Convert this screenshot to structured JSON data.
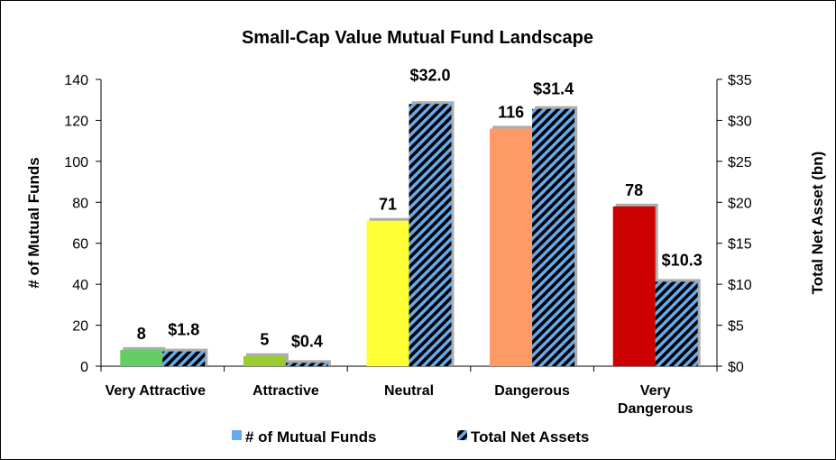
{
  "chart_data": {
    "type": "bar",
    "title": "Small-Cap Value Mutual Fund Landscape",
    "categories": [
      [
        "Very Attractive"
      ],
      [
        "Attractive"
      ],
      [
        "Neutral"
      ],
      [
        "Dangerous"
      ],
      [
        "Very",
        "Dangerous"
      ]
    ],
    "category_colors": [
      "#66cc66",
      "#99cc33",
      "#ffff33",
      "#ff9966",
      "#cc0000"
    ],
    "series": [
      {
        "name": "# of Mutual Funds",
        "values": [
          8,
          5,
          71,
          116,
          78
        ],
        "labels": [
          "8",
          "5",
          "71",
          "116",
          "78"
        ],
        "axis": "left",
        "legend_color": "#66aaee"
      },
      {
        "name": "Total Net Assets",
        "values": [
          1.8,
          0.4,
          32.0,
          31.4,
          10.3
        ],
        "labels": [
          "$1.8",
          "$0.4",
          "$32.0",
          "$31.4",
          "$10.3"
        ],
        "axis": "right",
        "fill": "#66aaee",
        "stripe": "#000000"
      }
    ],
    "yleft": {
      "label": "# of Mutual Funds",
      "ylim": [
        0,
        140
      ],
      "ticks": [
        "0",
        "20",
        "40",
        "60",
        "80",
        "100",
        "120",
        "140"
      ]
    },
    "yright": {
      "label": "Total Net Asset (bn)",
      "ylim": [
        0,
        35
      ],
      "ticks": [
        "$0",
        "$5",
        "$10",
        "$15",
        "$20",
        "$25",
        "$30",
        "$35"
      ]
    },
    "legend": "bottom",
    "grid": false
  }
}
